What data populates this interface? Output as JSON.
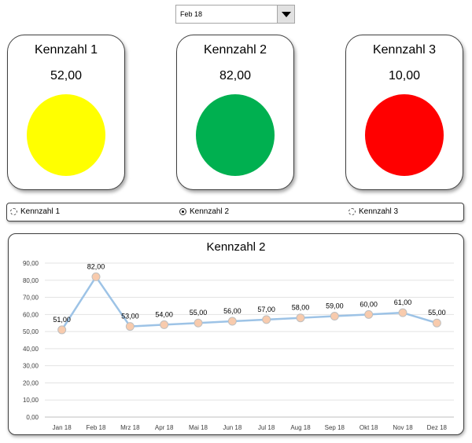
{
  "period_select": {
    "value": "Feb 18"
  },
  "cards": [
    {
      "title": "Kennzahl 1",
      "value": "52,00",
      "color": "#FFFF00"
    },
    {
      "title": "Kennzahl 2",
      "value": "82,00",
      "color": "#00B050"
    },
    {
      "title": "Kennzahl 3",
      "value": "10,00",
      "color": "#FF0000"
    }
  ],
  "radios": [
    {
      "label": "Kennzahl 1",
      "selected": false
    },
    {
      "label": "Kennzahl 2",
      "selected": true
    },
    {
      "label": "Kennzahl 3",
      "selected": false
    }
  ],
  "chart_data": {
    "type": "line",
    "title": "Kennzahl 2",
    "categories": [
      "Jan 18",
      "Feb 18",
      "Mrz 18",
      "Apr 18",
      "Mai 18",
      "Jun 18",
      "Jul 18",
      "Aug 18",
      "Sep 18",
      "Okt 18",
      "Nov 18",
      "Dez 18"
    ],
    "series": [
      {
        "values": [
          51,
          82,
          53,
          54,
          55,
          56,
          57,
          58,
          59,
          60,
          61,
          55
        ]
      }
    ],
    "data_labels": [
      "51,00",
      "82,00",
      "53,00",
      "54,00",
      "55,00",
      "56,00",
      "57,00",
      "58,00",
      "59,00",
      "60,00",
      "61,00",
      "55,00"
    ],
    "y_ticks": [
      "0,00",
      "10,00",
      "20,00",
      "30,00",
      "40,00",
      "50,00",
      "60,00",
      "70,00",
      "80,00",
      "90,00"
    ],
    "ylim": [
      0,
      90
    ],
    "grid": true,
    "line_color": "#9DC3E6",
    "marker_color": "#F8CBAD"
  }
}
